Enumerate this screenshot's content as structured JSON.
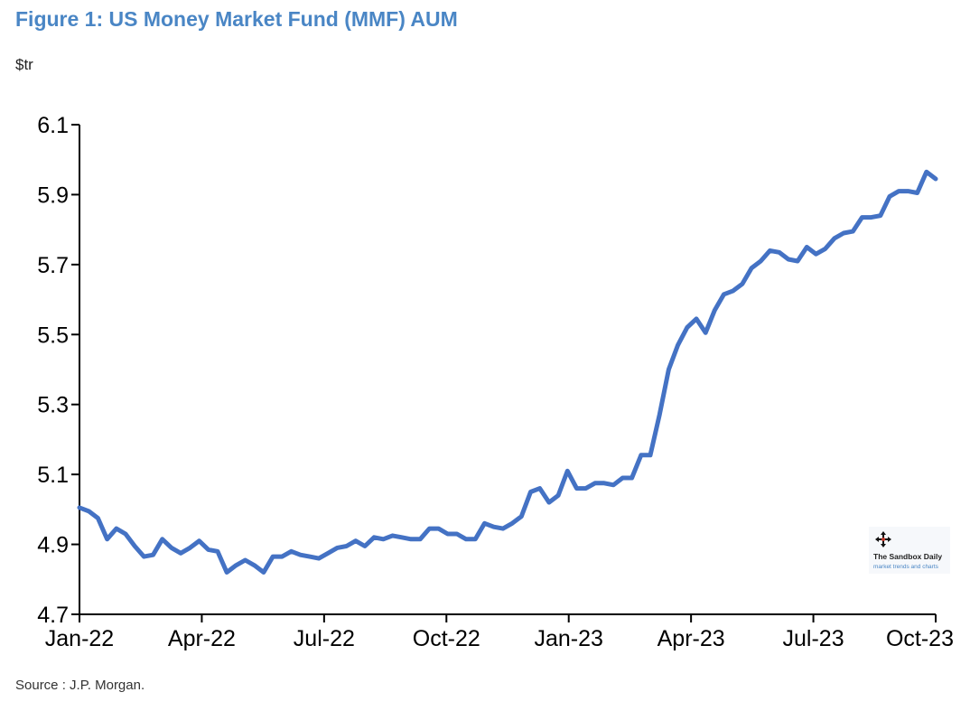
{
  "chart_data": {
    "type": "line",
    "title": "Figure 1: US Money Market Fund (MMF) AUM",
    "ylabel": "$tr",
    "xlabel": "",
    "ylim": [
      4.7,
      6.1
    ],
    "yticks": [
      "6.1",
      "5.9",
      "5.7",
      "5.5",
      "5.3",
      "5.1",
      "4.9",
      "4.7"
    ],
    "xticks": [
      "Jan-22",
      "Apr-22",
      "Jul-22",
      "Oct-22",
      "Jan-23",
      "Apr-23",
      "Jul-23",
      "Oct-23"
    ],
    "grid": false,
    "line_color": "#4472c4",
    "series": [
      {
        "values": [
          5.005,
          4.995,
          4.975,
          4.915,
          4.945,
          4.93,
          4.895,
          4.865,
          4.87,
          4.915,
          4.89,
          4.875,
          4.89,
          4.91,
          4.885,
          4.88,
          4.82,
          4.84,
          4.855,
          4.84,
          4.82,
          4.865,
          4.865,
          4.88,
          4.87,
          4.865,
          4.86,
          4.875,
          4.89,
          4.895,
          4.91,
          4.895,
          4.92,
          4.915,
          4.925,
          4.92,
          4.915,
          4.915,
          4.945,
          4.945,
          4.93,
          4.93,
          4.915,
          4.915,
          4.96,
          4.95,
          4.945,
          4.96,
          4.98,
          5.05,
          5.06,
          5.02,
          5.04,
          5.11,
          5.06,
          5.06,
          5.075,
          5.075,
          5.07,
          5.09,
          5.09,
          5.155,
          5.155,
          5.27,
          5.4,
          5.47,
          5.52,
          5.545,
          5.505,
          5.57,
          5.615,
          5.625,
          5.645,
          5.69,
          5.71,
          5.74,
          5.735,
          5.715,
          5.71,
          5.75,
          5.73,
          5.745,
          5.775,
          5.79,
          5.795,
          5.835,
          5.835,
          5.84,
          5.895,
          5.91,
          5.91,
          5.905,
          5.965,
          5.945
        ]
      }
    ]
  },
  "source": "Source : J.P. Morgan.",
  "watermark": {
    "name": "The Sandbox Daily",
    "tagline": "market trends and charts",
    "icon": "move-arrows-icon"
  }
}
